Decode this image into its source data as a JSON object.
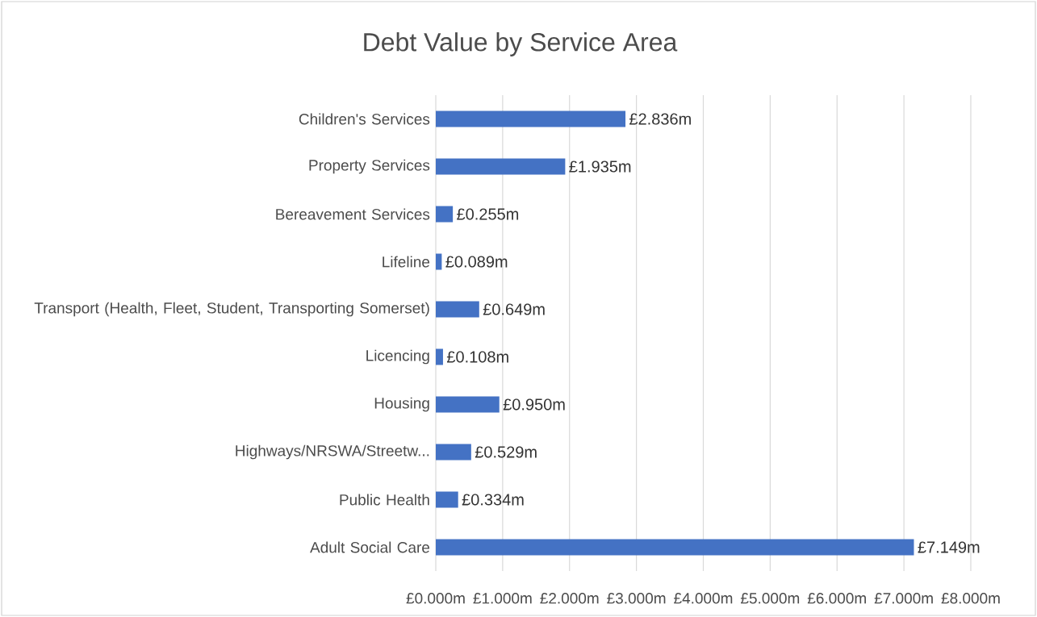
{
  "chart_data": {
    "type": "bar",
    "orientation": "horizontal",
    "title": "Debt Value by Service Area",
    "categories": [
      "Children's Services",
      "Property Services",
      "Bereavement Services",
      "Lifeline",
      "Transport (Health, Fleet, Student, Transporting Somerset)",
      "Licencing",
      "Housing",
      "Highways/NRSWA/Streetw...",
      "Public Health",
      "Adult Social Care"
    ],
    "values": [
      2.836,
      1.935,
      0.255,
      0.089,
      0.649,
      0.108,
      0.95,
      0.529,
      0.334,
      7.149
    ],
    "value_labels": [
      "£2.836m",
      "£1.935m",
      "£0.255m",
      "£0.089m",
      "£0.649m",
      "£0.108m",
      "£0.950m",
      "£0.529m",
      "£0.334m",
      "£7.149m"
    ],
    "color": "#4472c4",
    "xlim": [
      0,
      8
    ],
    "xticks": [
      {
        "value": 0,
        "label": "£0.000m"
      },
      {
        "value": 1,
        "label": "£1.000m"
      },
      {
        "value": 2,
        "label": "£2.000m"
      },
      {
        "value": 3,
        "label": "£3.000m"
      },
      {
        "value": 4,
        "label": "£4.000m"
      },
      {
        "value": 5,
        "label": "£5.000m"
      },
      {
        "value": 6,
        "label": "£6.000m"
      },
      {
        "value": 7,
        "label": "£7.000m"
      },
      {
        "value": 8,
        "label": "£8.000m"
      }
    ],
    "grid": "x"
  }
}
